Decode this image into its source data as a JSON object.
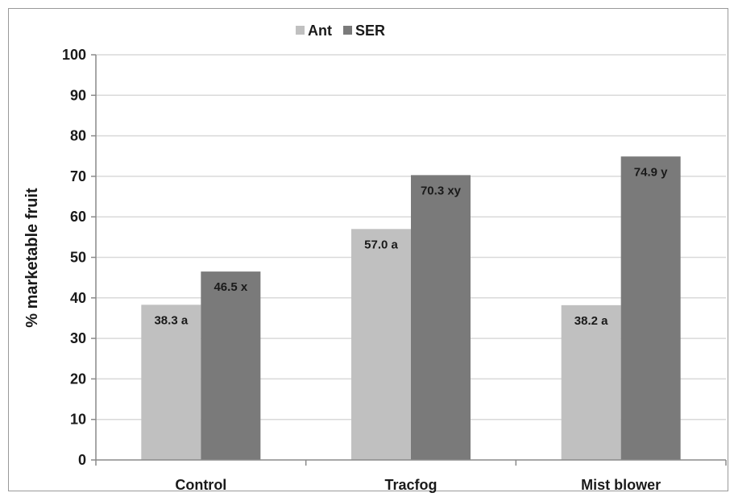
{
  "chart_data": {
    "type": "bar",
    "categories": [
      "Control",
      "Tracfog",
      "Mist blower"
    ],
    "series": [
      {
        "name": "Ant",
        "color": "#c0c0c0",
        "values": [
          38.3,
          57.0,
          38.2
        ],
        "labels": [
          "38.3 a",
          "57.0 a",
          "38.2 a"
        ]
      },
      {
        "name": "SER",
        "color": "#7a7a7a",
        "values": [
          46.5,
          70.3,
          74.9
        ],
        "labels": [
          "46.5 x",
          "70.3 xy",
          "74.9 y"
        ]
      }
    ],
    "title": "",
    "xlabel": "",
    "ylabel": "% marketable fruit",
    "ylim": [
      0,
      100
    ],
    "yticks": [
      0,
      10,
      20,
      30,
      40,
      50,
      60,
      70,
      80,
      90,
      100
    ],
    "grid": true,
    "legend_position": "top-center"
  }
}
